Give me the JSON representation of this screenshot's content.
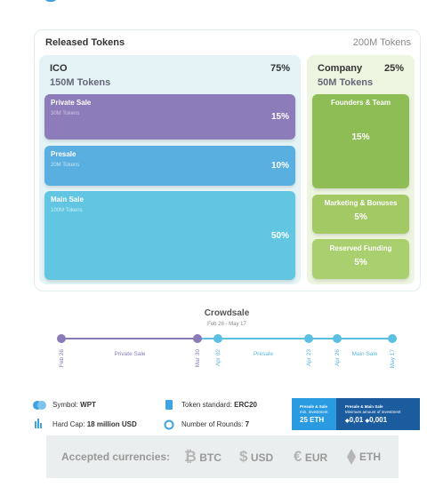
{
  "released": {
    "title": "Released Tokens",
    "total": "200M Tokens"
  },
  "ico": {
    "title": "ICO",
    "percent": "75%",
    "tokens": "150M Tokens",
    "items": [
      {
        "name": "Private Sale",
        "tokens": "30M Tokens",
        "percent": "15%"
      },
      {
        "name": "Presale",
        "tokens": "20M Tokens",
        "percent": "10%"
      },
      {
        "name": "Main Sale",
        "tokens": "100M Tokens",
        "percent": "50%"
      }
    ]
  },
  "company": {
    "title": "Company",
    "percent": "25%",
    "tokens": "50M Tokens",
    "items": [
      {
        "name": "Founders & Team",
        "percent": "15%"
      },
      {
        "name": "Marketing & Bonuses",
        "percent": "5%"
      },
      {
        "name": "Reserved Funding",
        "percent": "5%"
      }
    ]
  },
  "crowdsale": {
    "title": "Crowdsale",
    "period": "Feb 26 - May 17",
    "dates": [
      "Feb 26",
      "Mar 30",
      "Apr 02",
      "Apr 23",
      "Apr 26",
      "May 17"
    ],
    "phases": [
      "Private Sale",
      "Presale",
      "Main Sale"
    ]
  },
  "info": [
    {
      "label": "Symbol:",
      "value": "WPT"
    },
    {
      "label": "Hard Cap:",
      "value": "18 million USD"
    },
    {
      "label": "Token standard:",
      "value": "ERC20"
    },
    {
      "label": "Number of Rounds:",
      "value": "7"
    }
  ],
  "investment": {
    "left": {
      "title": "Presale & Sale",
      "subtitle": "min. investment",
      "amount": "25 ETH"
    },
    "right": {
      "title": "Presale & Main Sale",
      "subtitle": "Minimum amount of investment",
      "amounts": [
        "0,01",
        "0,001"
      ]
    }
  },
  "currencies": {
    "title": "Accepted currencies:",
    "items": [
      {
        "icon": "₿",
        "name": "BTC"
      },
      {
        "icon": "$",
        "name": "USD"
      },
      {
        "icon": "€",
        "name": "EUR"
      },
      {
        "name": "ETH"
      }
    ]
  }
}
